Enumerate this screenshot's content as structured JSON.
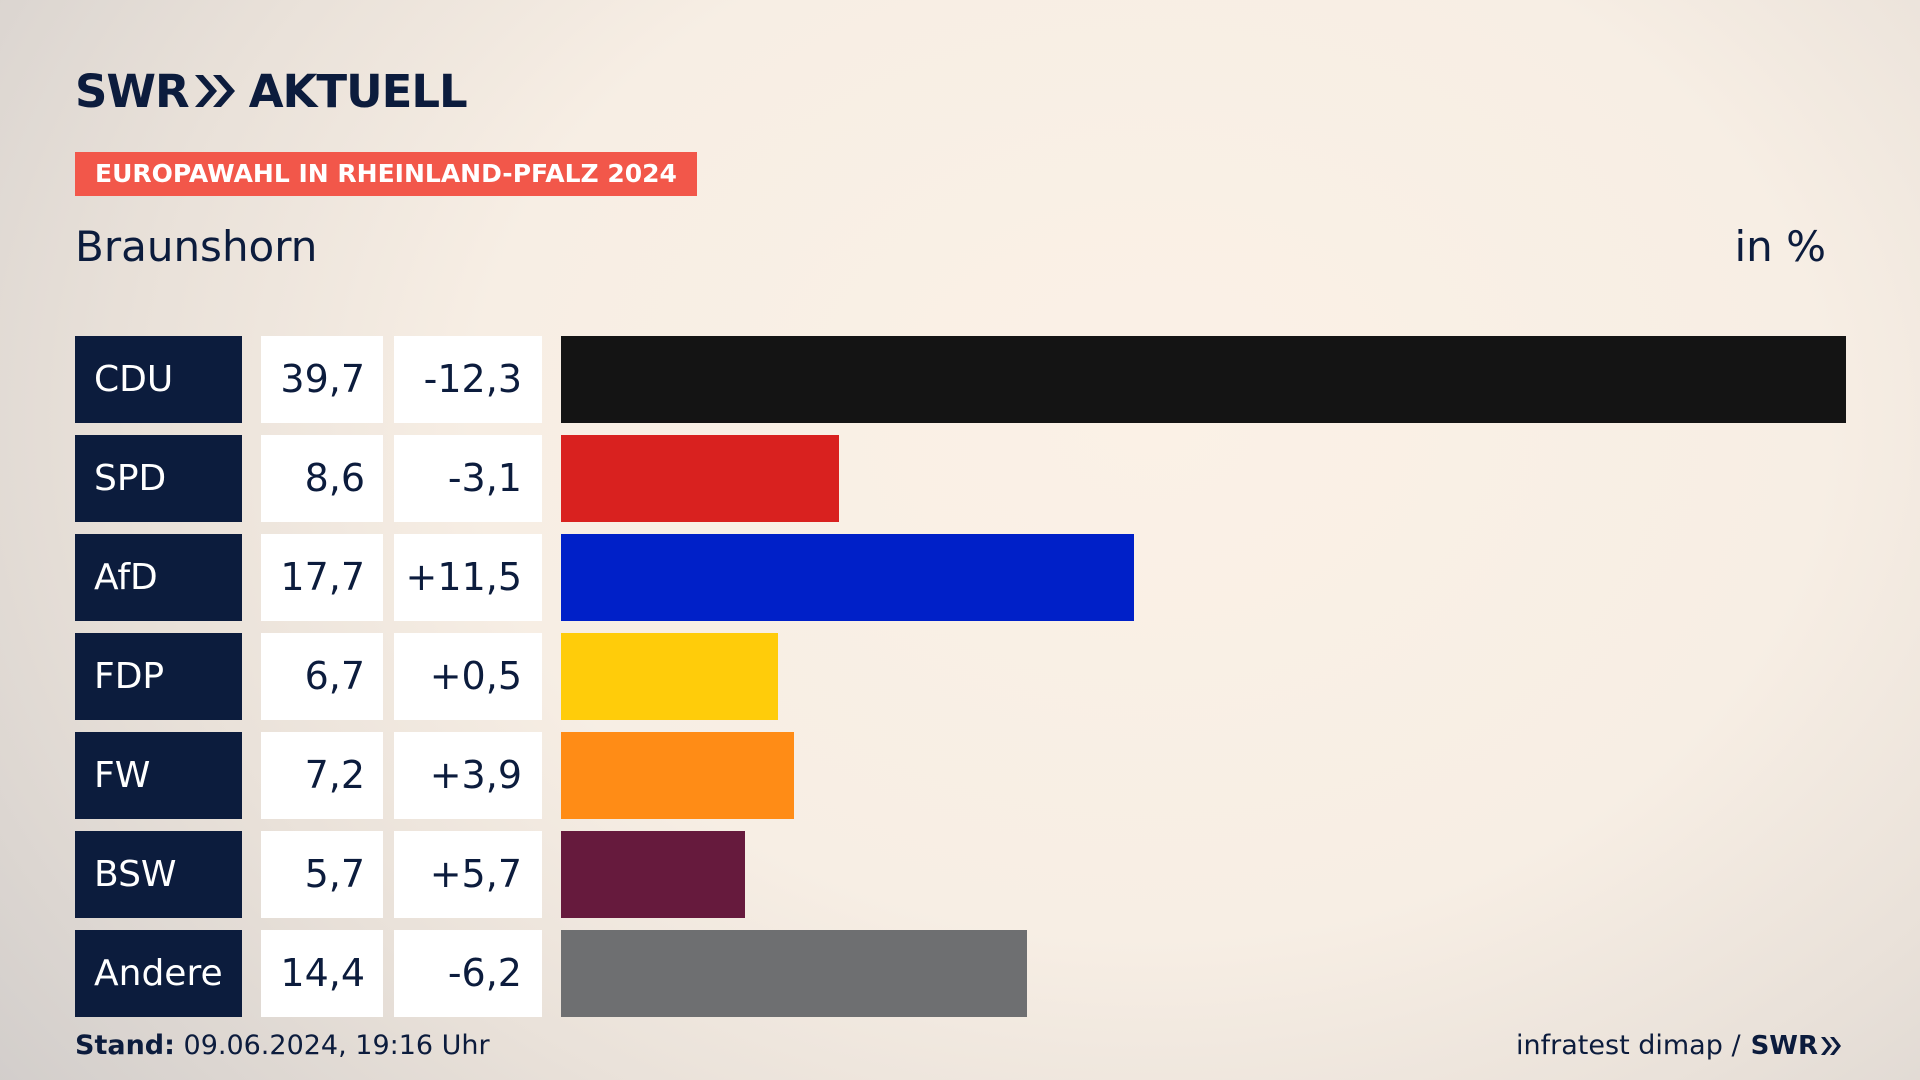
{
  "header": {
    "brand_left": "SWR",
    "brand_right": "AKTUELL",
    "tag": "EUROPAWAHL IN RHEINLAND-PFALZ 2024",
    "region": "Braunshorn",
    "unit": "in %"
  },
  "footer": {
    "stand_label": "Stand:",
    "stand_value": "09.06.2024, 19:16 Uhr",
    "source": "infratest dimap /",
    "source_brand": "SWR"
  },
  "colors": {
    "navy": "#0c1c3d",
    "tag": "#f2574a"
  },
  "chart_data": {
    "type": "bar",
    "orientation": "horizontal",
    "categories": [
      "CDU",
      "SPD",
      "AfD",
      "FDP",
      "FW",
      "BSW",
      "Andere"
    ],
    "values": [
      39.7,
      8.6,
      17.7,
      6.7,
      7.2,
      5.7,
      14.4
    ],
    "values_label": [
      "39,7",
      "8,6",
      "17,7",
      "6,7",
      "7,2",
      "5,7",
      "14,4"
    ],
    "changes": [
      -12.3,
      -3.1,
      11.5,
      0.5,
      3.9,
      5.7,
      -6.2
    ],
    "changes_label": [
      "-12,3",
      "-3,1",
      "+11,5",
      "+0,5",
      "+3,9",
      "+5,7",
      "-6,2"
    ],
    "colors": [
      "#141414",
      "#d9211f",
      "#0020c8",
      "#ffcc0a",
      "#ff8c16",
      "#661a3d",
      "#6e6f71"
    ],
    "xlim": [
      0,
      39.7
    ],
    "grid": false,
    "legend": "none"
  }
}
